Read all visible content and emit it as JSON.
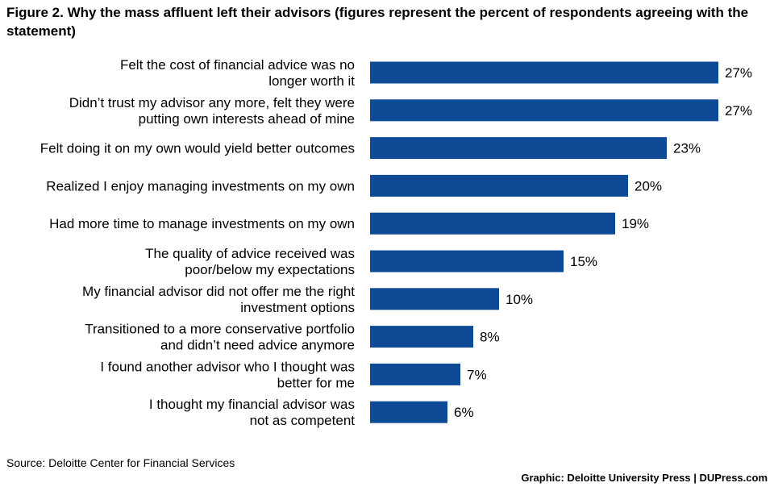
{
  "title": "Figure 2. Why the mass affluent left their advisors (figures represent the percent of respondents agreeing with the statement)",
  "source": "Source: Deloitte Center for Financial Services",
  "credit": "Graphic: Deloitte University Press  |  DUPress.com",
  "colors": {
    "bar": "#0e4a96",
    "text": "#000000",
    "background": "#ffffff"
  },
  "chart_data": {
    "type": "bar",
    "orientation": "horizontal",
    "categories": [
      [
        "Felt the cost of financial advice was no",
        "longer worth it"
      ],
      [
        "Didn’t trust my advisor any more, felt they were",
        "putting own interests ahead of mine"
      ],
      [
        "Felt doing it on my own would yield better outcomes"
      ],
      [
        "Realized I enjoy managing investments on my own"
      ],
      [
        "Had more time to manage investments on my own"
      ],
      [
        "The quality of advice received was",
        "poor/below my expectations"
      ],
      [
        "My financial advisor did not offer me the right",
        "investment options"
      ],
      [
        "Transitioned to a more conservative portfolio",
        "and didn’t need advice anymore"
      ],
      [
        "I found another advisor who I thought was",
        "better for me"
      ],
      [
        "I thought my financial advisor was",
        "not as competent"
      ]
    ],
    "values": [
      27,
      27,
      23,
      20,
      19,
      15,
      10,
      8,
      7,
      6
    ],
    "value_labels": [
      "27%",
      "27%",
      "23%",
      "20%",
      "19%",
      "15%",
      "10%",
      "8%",
      "7%",
      "6%"
    ],
    "unit": "%",
    "xlim": [
      0,
      27
    ],
    "grid": false,
    "legend": "none"
  }
}
